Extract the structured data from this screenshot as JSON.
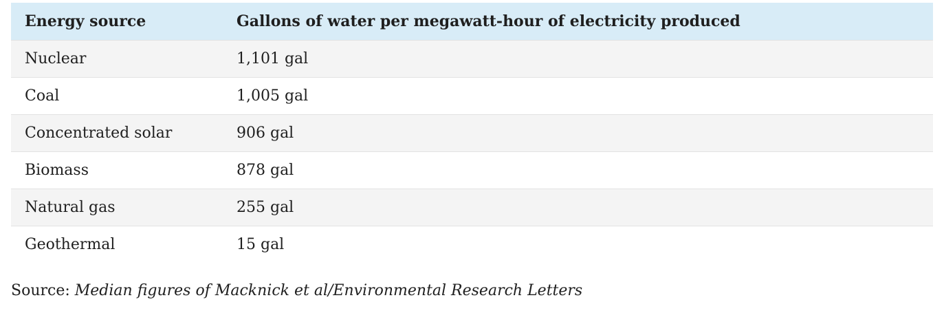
{
  "chart_data": {
    "type": "table",
    "columns": [
      "Energy source",
      "Gallons of water per megawatt-hour of electricity produced"
    ],
    "rows": [
      {
        "source": "Nuclear",
        "gallons": 1101,
        "display": "1,101 gal"
      },
      {
        "source": "Coal",
        "gallons": 1005,
        "display": "1,005 gal"
      },
      {
        "source": "Concentrated solar",
        "gallons": 906,
        "display": "906 gal"
      },
      {
        "source": "Biomass",
        "gallons": 878,
        "display": "878 gal"
      },
      {
        "source": "Natural gas",
        "gallons": 255,
        "display": "255 gal"
      },
      {
        "source": "Geothermal",
        "gallons": 15,
        "display": "15 gal"
      }
    ],
    "header_color": "#d8ecf7",
    "stripe_color": "#f4f4f4"
  },
  "footer": {
    "source_label": "Source:",
    "source_text": "Median figures of Macknick et al/Environmental Research Letters"
  }
}
